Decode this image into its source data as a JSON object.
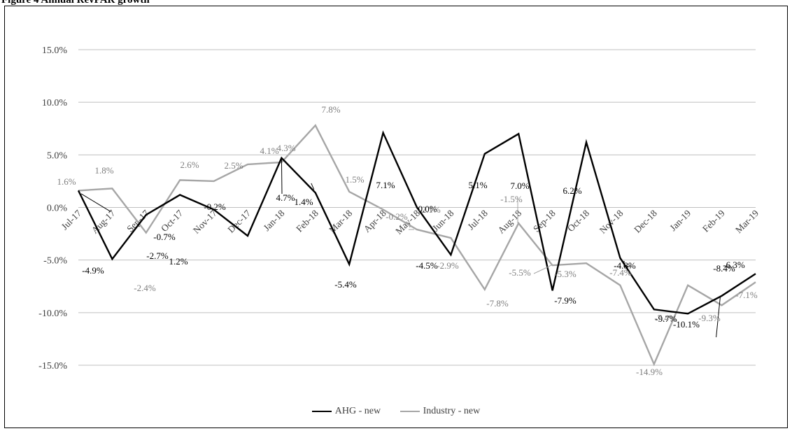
{
  "figure_title": "Figure 4 Annual RevPAR growth",
  "chart_data": {
    "type": "line",
    "x": [
      "Jul-17",
      "Aug-17",
      "Sep-17",
      "Oct-17",
      "Nov-17",
      "Dec-17",
      "Jan-18",
      "Feb-18",
      "Mar-18",
      "Apr-18",
      "May-18",
      "Jun-18",
      "Jul-18",
      "Aug-18",
      "Sep-18",
      "Oct-18",
      "Nov-18",
      "Dec-18",
      "Jan-19",
      "Feb-19",
      "Mar-19"
    ],
    "ylim": [
      -15,
      15
    ],
    "yticks": [
      -15,
      -10,
      -5,
      0,
      5,
      10,
      15
    ],
    "ytick_labels": [
      "-15.0%",
      "-10.0%",
      "-5.0%",
      "0.0%",
      "5.0%",
      "10.0%",
      "15.0%"
    ],
    "grid": true,
    "legend_position": "bottom",
    "series": [
      {
        "name": "AHG - new",
        "color": "#000000",
        "values": [
          1.6,
          -4.9,
          -0.7,
          1.2,
          -0.2,
          -2.7,
          4.7,
          1.4,
          -5.4,
          7.1,
          0.0,
          -4.5,
          5.1,
          7.0,
          -7.9,
          6.2,
          -4.8,
          -9.7,
          -10.1,
          -8.4,
          -6.3
        ],
        "labels": [
          "",
          "-4.9%",
          "-0.7%",
          "1.2%",
          "-0.2%",
          "-2.7%",
          "4.7%",
          "1.4%",
          "-5.4%",
          "7.1%",
          "0.0%",
          "-4.5%",
          "5.1%",
          "7.0%",
          "-7.9%",
          "6.2%",
          "-4.8%",
          "-9.7%",
          "-10.1%",
          "-8.4%",
          "-6.3%"
        ]
      },
      {
        "name": "Industry - new",
        "color": "#a6a6a6",
        "values": [
          1.6,
          1.8,
          -2.4,
          2.6,
          2.5,
          4.1,
          4.3,
          7.8,
          1.5,
          -0.2,
          -2.1,
          -2.9,
          -7.8,
          -1.5,
          -5.5,
          -5.3,
          -7.4,
          -14.9,
          -7.4,
          -9.3,
          -7.1
        ],
        "labels": [
          "1.6%",
          "1.8%",
          "-2.4%",
          "2.6%",
          "2.5%",
          "4.1%",
          "4.3%",
          "7.8%",
          "1.5%",
          "-0.2%",
          "-2.1%",
          "-2.9%",
          "-7.8%",
          "-1.5%",
          "-5.5%",
          "-5.3%",
          "-7.4%",
          "-14.9%",
          "-7.4%",
          "-9.3%",
          "-7.1%"
        ]
      }
    ]
  }
}
